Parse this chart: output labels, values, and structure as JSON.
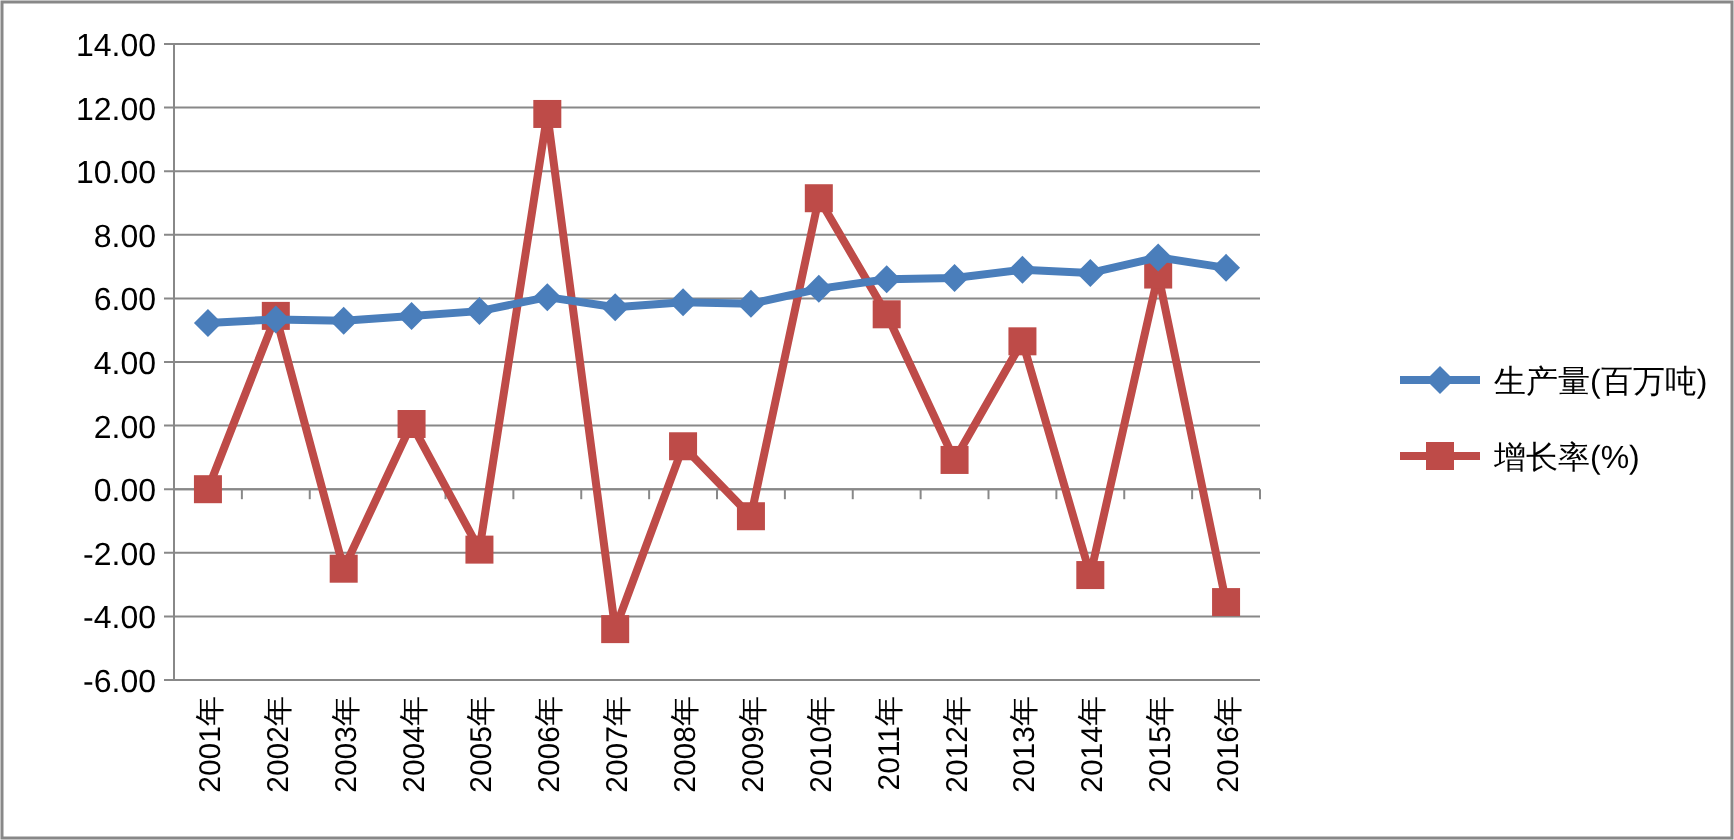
{
  "chart_data": {
    "type": "line",
    "categories": [
      "2001年",
      "2002年",
      "2003年",
      "2004年",
      "2005年",
      "2006年",
      "2007年",
      "2008年",
      "2009年",
      "2010年",
      "2011年",
      "2012年",
      "2013年",
      "2014年",
      "2015年",
      "2016年"
    ],
    "series": [
      {
        "name": "生产量(百万吨)",
        "color": "#4a7ebb",
        "marker": "diamond",
        "values": [
          5.23,
          5.34,
          5.3,
          5.45,
          5.6,
          6.04,
          5.72,
          5.88,
          5.83,
          6.3,
          6.6,
          6.64,
          6.9,
          6.8,
          7.29,
          6.96
        ]
      },
      {
        "name": "增长率(%)",
        "color": "#be4b48",
        "marker": "square",
        "values": [
          0,
          5.45,
          -2.5,
          2.05,
          -1.9,
          11.8,
          -4.4,
          1.35,
          -0.85,
          9.15,
          5.5,
          0.92,
          4.65,
          -2.7,
          6.75,
          -3.55
        ]
      }
    ],
    "ylim": [
      -6,
      14
    ],
    "yticks": [
      {
        "value": -6,
        "label": "-6.00"
      },
      {
        "value": -4,
        "label": "-4.00"
      },
      {
        "value": -2,
        "label": "-2.00"
      },
      {
        "value": 0,
        "label": "0.00"
      },
      {
        "value": 2,
        "label": "2.00"
      },
      {
        "value": 4,
        "label": "4.00"
      },
      {
        "value": 6,
        "label": "6.00"
      },
      {
        "value": 8,
        "label": "8.00"
      },
      {
        "value": 10,
        "label": "10.00"
      },
      {
        "value": 12,
        "label": "12.00"
      },
      {
        "value": 14,
        "label": "14.00"
      }
    ],
    "grid": "y",
    "legend": "right"
  }
}
